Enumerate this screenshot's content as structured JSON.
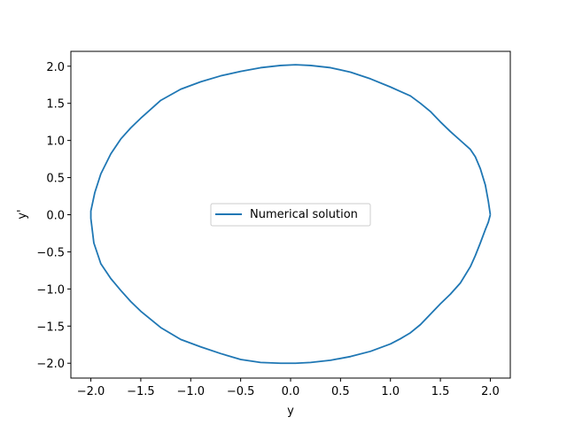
{
  "chart_data": {
    "type": "line",
    "title": "",
    "xlabel": "y",
    "ylabel": "y'",
    "xlim": [
      -2.2,
      2.2
    ],
    "ylim": [
      -2.2,
      2.2
    ],
    "xticks": [
      -2.0,
      -1.5,
      -1.0,
      -0.5,
      0.0,
      0.5,
      1.0,
      1.5,
      2.0
    ],
    "yticks": [
      -2.0,
      -1.5,
      -1.0,
      -0.5,
      0.0,
      0.5,
      1.0,
      1.5,
      2.0
    ],
    "xtick_labels": [
      "−2.0",
      "−1.5",
      "−1.0",
      "−0.5",
      "0.0",
      "0.5",
      "1.0",
      "1.5",
      "2.0"
    ],
    "ytick_labels": [
      "−2.0",
      "−1.5",
      "−1.0",
      "−0.5",
      "0.0",
      "0.5",
      "1.0",
      "1.5",
      "2.0"
    ],
    "grid": false,
    "legend_position": "center",
    "series": [
      {
        "name": "Numerical solution",
        "color": "#1f77b4",
        "x": [
          2.0,
          1.98,
          1.95,
          1.9,
          1.85,
          1.8,
          1.7,
          1.6,
          1.5,
          1.4,
          1.3,
          1.2,
          1.1,
          1.0,
          0.8,
          0.6,
          0.4,
          0.2,
          0.05,
          -0.1,
          -0.3,
          -0.5,
          -0.7,
          -0.9,
          -1.1,
          -1.3,
          -1.5,
          -1.6,
          -1.7,
          -1.8,
          -1.9,
          -1.96,
          -2.0,
          -2.0,
          -1.97,
          -1.9,
          -1.8,
          -1.7,
          -1.6,
          -1.5,
          -1.3,
          -1.1,
          -0.9,
          -0.7,
          -0.5,
          -0.3,
          -0.1,
          0.05,
          0.2,
          0.4,
          0.6,
          0.8,
          1.0,
          1.1,
          1.2,
          1.3,
          1.4,
          1.5,
          1.6,
          1.7,
          1.8,
          1.85,
          1.9,
          1.95,
          1.98,
          2.0
        ],
        "y": [
          0.0,
          0.18,
          0.4,
          0.62,
          0.78,
          0.88,
          1.0,
          1.12,
          1.25,
          1.39,
          1.5,
          1.6,
          1.66,
          1.72,
          1.83,
          1.92,
          1.98,
          2.01,
          2.02,
          2.01,
          1.98,
          1.93,
          1.87,
          1.79,
          1.69,
          1.54,
          1.3,
          1.17,
          1.02,
          0.82,
          0.55,
          0.3,
          0.05,
          -0.05,
          -0.38,
          -0.66,
          -0.86,
          -1.02,
          -1.17,
          -1.3,
          -1.52,
          -1.68,
          -1.78,
          -1.87,
          -1.95,
          -1.99,
          -2.0,
          -2.0,
          -1.99,
          -1.96,
          -1.91,
          -1.84,
          -1.74,
          -1.67,
          -1.59,
          -1.48,
          -1.34,
          -1.2,
          -1.07,
          -0.92,
          -0.7,
          -0.55,
          -0.38,
          -0.2,
          -0.1,
          0.0
        ]
      }
    ]
  }
}
